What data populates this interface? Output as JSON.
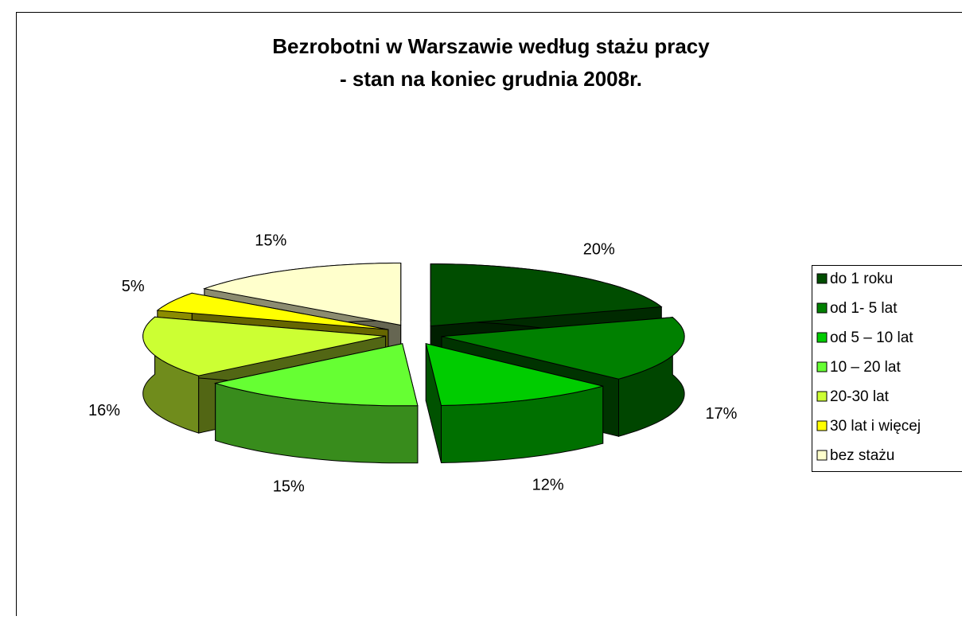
{
  "chart_data": {
    "type": "pie",
    "title": [
      "Bezrobotni w Warszawie według stażu pracy",
      "- stan na koniec grudnia 2008r."
    ],
    "categories": [
      "do 1 roku",
      "od 1- 5 lat",
      "od 5 – 10 lat",
      "10 – 20 lat",
      "20-30 lat",
      "30 lat i więcej",
      "bez stażu"
    ],
    "values": [
      20,
      17,
      12,
      15,
      16,
      5,
      15
    ],
    "value_labels": [
      "20%",
      "17%",
      "12%",
      "15%",
      "16%",
      "5%",
      "15%"
    ],
    "colors": [
      "#004d00",
      "#008000",
      "#00cc00",
      "#66ff33",
      "#ccff33",
      "#ffff00",
      "#ffffcc"
    ],
    "legend": "right"
  }
}
